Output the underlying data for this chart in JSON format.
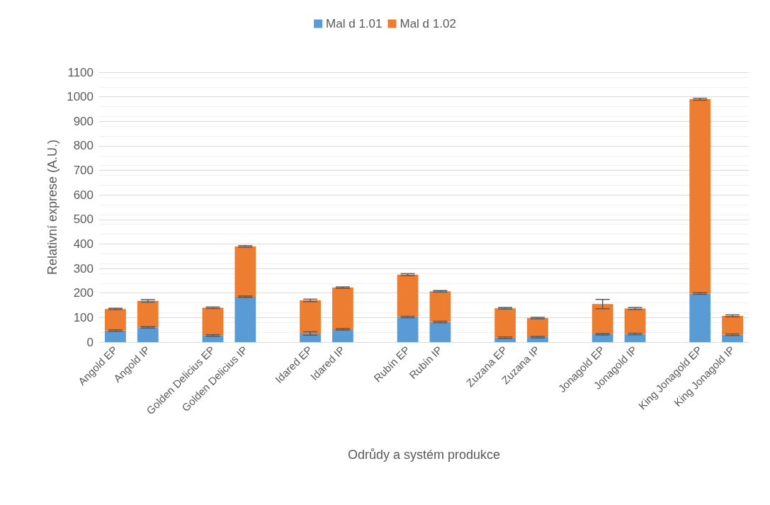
{
  "chart_data": {
    "type": "bar",
    "stacked": true,
    "xlabel": "Odrůdy a systém produkce",
    "ylabel": "Relativní exprese (A.U.)",
    "categories": [
      "Angold EP",
      "Angold IP",
      null,
      "Golden Delicius EP",
      "Golden Delicius IP",
      null,
      "Idared EP",
      "Idared IP",
      null,
      "Rubín EP",
      "Rubín IP",
      null,
      "Zuzana EP",
      "Zuzana IP",
      null,
      "Jonagold EP",
      "Jonagold IP",
      null,
      "King Jonagold EP",
      "King Jonagold IP"
    ],
    "series": [
      {
        "name": "Mal d 1.01",
        "color": "#5b9bd5",
        "values": [
          47,
          60,
          null,
          27,
          185,
          null,
          35,
          52,
          null,
          102,
          82,
          null,
          18,
          20,
          null,
          32,
          33,
          null,
          198,
          30
        ],
        "errors": [
          3,
          3,
          null,
          3,
          3,
          null,
          7,
          3,
          null,
          3,
          3,
          null,
          3,
          3,
          null,
          3,
          3,
          null,
          3,
          3
        ]
      },
      {
        "name": "Mal d 1.02",
        "color": "#ed7d31",
        "values": [
          88,
          108,
          null,
          113,
          205,
          null,
          135,
          170,
          null,
          173,
          125,
          null,
          120,
          78,
          null,
          123,
          104,
          null,
          792,
          77
        ],
        "errors": [
          3,
          5,
          null,
          3,
          3,
          null,
          5,
          3,
          null,
          4,
          3,
          null,
          3,
          3,
          null,
          19,
          4,
          null,
          4,
          4
        ]
      }
    ],
    "ylim": [
      0,
      1100
    ],
    "yticks": [
      0,
      100,
      200,
      300,
      400,
      500,
      600,
      700,
      800,
      900,
      1000,
      1100
    ],
    "grid": "y",
    "legend": "top"
  }
}
